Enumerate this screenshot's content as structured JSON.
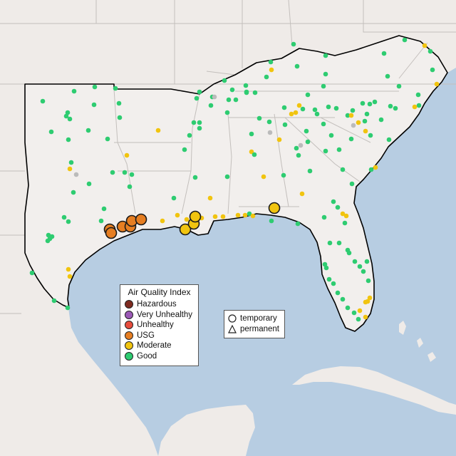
{
  "legend": {
    "title": "Air Quality Index",
    "categories": [
      {
        "label": "Hazardous",
        "color": "#7e2a1f"
      },
      {
        "label": "Very Unhealthy",
        "color": "#9b59b6"
      },
      {
        "label": "Unhealthy",
        "color": "#e74c3c"
      },
      {
        "label": "USG",
        "color": "#e67e22"
      },
      {
        "label": "Moderate",
        "color": "#f1c40f"
      },
      {
        "label": "Good",
        "color": "#2ecc71"
      }
    ],
    "nodata_color": "#bbbbbb"
  },
  "monitor_types": [
    {
      "label": "temporary",
      "symbol": "circle-icon"
    },
    {
      "label": "permanent",
      "symbol": "triangle-icon"
    }
  ],
  "colors": {
    "water": "#b7cde2",
    "land": "#efebe8",
    "region_fill": "#f2efed",
    "state_lines": "#c3bfbc",
    "region_outline": "#000000"
  }
}
